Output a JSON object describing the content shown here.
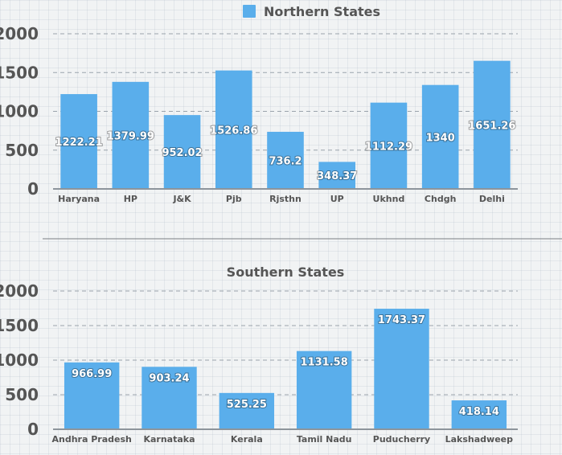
{
  "charts": {
    "northern": {
      "type": "bar",
      "legend_label": "Northern States",
      "legend_placement": "top-center",
      "color": "#5aaeeb",
      "categories": [
        "Haryana",
        "HP",
        "J&K",
        "Pjb",
        "Rjsthn",
        "UP",
        "Ukhnd",
        "Chdgh",
        "Delhi"
      ],
      "values": [
        1222.21,
        1379.99,
        952.02,
        1526.86,
        736.2,
        348.37,
        1112.29,
        1340,
        1651.26
      ],
      "value_labels": [
        "1222.21",
        "1379.99",
        "952.02",
        "1526.86",
        "736.2",
        "348.37",
        "1112.29",
        "1340",
        "1651.26"
      ],
      "yticks": [
        0,
        500,
        1000,
        1500,
        2000
      ],
      "ylim": [
        0,
        2000
      ],
      "grid": true
    },
    "southern": {
      "type": "bar",
      "title": "Southern States",
      "color": "#5aaeeb",
      "categories": [
        "Andhra Pradesh",
        "Karnataka",
        "Kerala",
        "Tamil Nadu",
        "Puducherry",
        "Lakshadweep"
      ],
      "values": [
        966.99,
        903.24,
        525.25,
        1131.58,
        1743.37,
        418.14
      ],
      "value_labels": [
        "966.99",
        "903.24",
        "525.25",
        "1131.58",
        "1743.37",
        "418.14"
      ],
      "yticks": [
        0,
        500,
        1000,
        1500,
        2000
      ],
      "ylim": [
        0,
        2000
      ],
      "grid": true
    }
  },
  "chart_data": [
    {
      "type": "bar",
      "categories": [
        "Haryana",
        "HP",
        "J&K",
        "Pjb",
        "Rjsthn",
        "UP",
        "Ukhnd",
        "Chdgh",
        "Delhi"
      ],
      "series": [
        {
          "name": "Northern States",
          "values": [
            1222.21,
            1379.99,
            952.02,
            1526.86,
            736.2,
            348.37,
            1112.29,
            1340,
            1651.26
          ]
        }
      ],
      "ylim": [
        0,
        2000
      ],
      "legend": "top-center",
      "grid": true
    },
    {
      "type": "bar",
      "title": "Southern States",
      "categories": [
        "Andhra Pradesh",
        "Karnataka",
        "Kerala",
        "Tamil Nadu",
        "Puducherry",
        "Lakshadweep"
      ],
      "values": [
        966.99,
        903.24,
        525.25,
        1131.58,
        1743.37,
        418.14
      ],
      "ylim": [
        0,
        2000
      ],
      "grid": true
    }
  ]
}
